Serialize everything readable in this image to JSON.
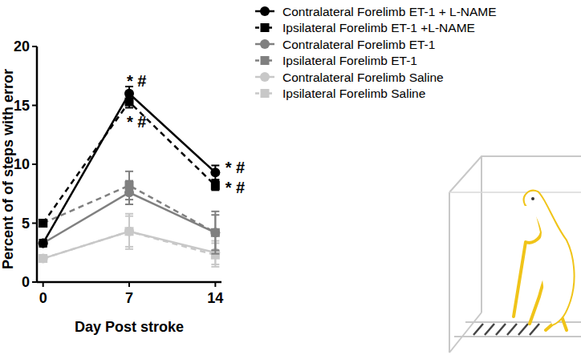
{
  "chart_data": {
    "type": "line",
    "x_label": "Day Post stroke",
    "y_label": "Percent of of steps with error",
    "x": [
      0,
      7,
      14
    ],
    "xlim": [
      -0.5,
      14.5
    ],
    "xticks": [
      0,
      7,
      14
    ],
    "ylim": [
      0,
      20
    ],
    "yticks": [
      0,
      5,
      10,
      15,
      20
    ],
    "grid": false,
    "legend": "top-right",
    "series": [
      {
        "name": "Contralateral Forelimb ET-1 + L-NAME",
        "color": "#000000",
        "marker": "circle",
        "line_style": "solid",
        "values": [
          3.3,
          16.0,
          9.3
        ],
        "errors": [
          0.3,
          0.6,
          0.6
        ]
      },
      {
        "name": "Ipsilateral Forelimb ET-1 +L-NAME",
        "color": "#000000",
        "marker": "square",
        "line_style": "dashed",
        "values": [
          5.0,
          15.3,
          8.2
        ],
        "errors": [
          0.3,
          0.5,
          0.4
        ]
      },
      {
        "name": "Contralateral Forelimb ET-1",
        "color": "#808080",
        "marker": "circle",
        "line_style": "solid",
        "values": [
          3.3,
          7.6,
          4.2
        ],
        "errors": [
          0.3,
          1.0,
          1.5
        ]
      },
      {
        "name": "Ipsilateral Forelimb ET-1",
        "color": "#808080",
        "marker": "square",
        "line_style": "dashed",
        "values": [
          5.0,
          8.2,
          4.2
        ],
        "errors": [
          0.3,
          1.2,
          1.8
        ]
      },
      {
        "name": "Contralateral Forelimb Saline",
        "color": "#c8c8c8",
        "marker": "circle",
        "line_style": "solid",
        "values": [
          2.0,
          4.3,
          2.5
        ],
        "errors": [
          0.3,
          1.3,
          1.0
        ]
      },
      {
        "name": "Ipsilateral Forelimb Saline",
        "color": "#c8c8c8",
        "marker": "square",
        "line_style": "dashed",
        "values": [
          2.0,
          4.3,
          2.3
        ],
        "errors": [
          0.3,
          1.5,
          1.0
        ]
      }
    ],
    "annotations": [
      {
        "text": "* #",
        "x": 7.6,
        "y": 17.1
      },
      {
        "text": "* #",
        "x": 7.6,
        "y": 13.6
      },
      {
        "text": "* #",
        "x": 15.6,
        "y": 9.7
      },
      {
        "text": "* #",
        "x": 15.6,
        "y": 8.0
      }
    ]
  }
}
